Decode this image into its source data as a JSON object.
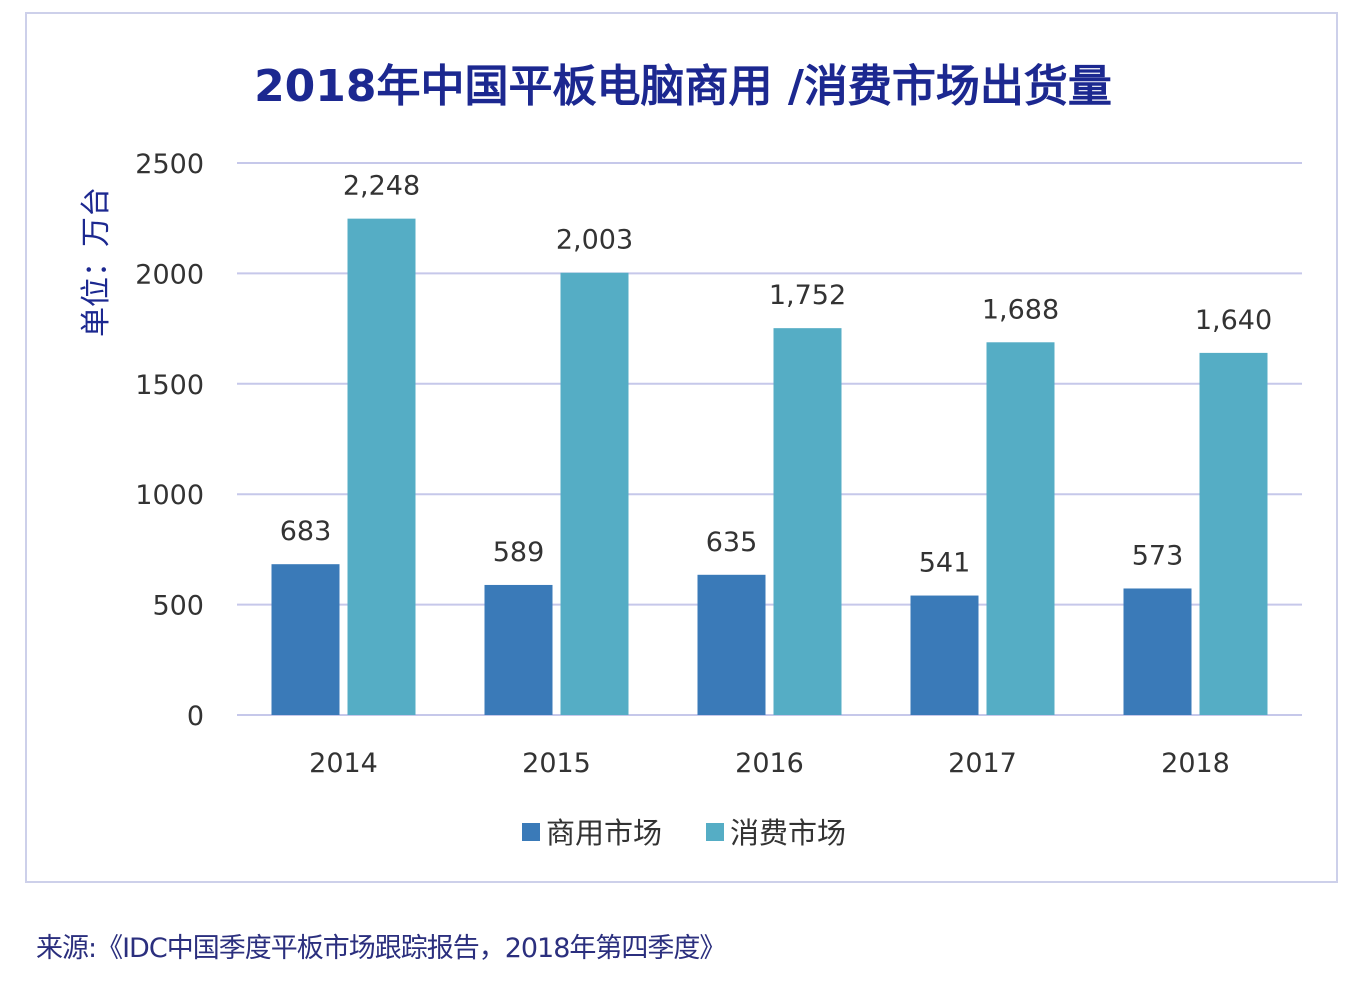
{
  "chart_data": {
    "type": "bar",
    "title": "2018年中国平板电脑商用 /消费市场出货量",
    "ylabel": "单位：万台",
    "xlabel": "",
    "categories": [
      "2014",
      "2015",
      "2016",
      "2017",
      "2018"
    ],
    "series": [
      {
        "name": "商用市场",
        "color": "#3a7ab8",
        "values": [
          683,
          589,
          635,
          541,
          573
        ],
        "labels": [
          "683",
          "589",
          "635",
          "541",
          "573"
        ]
      },
      {
        "name": "消费市场",
        "color": "#55adc5",
        "values": [
          2248,
          2003,
          1752,
          1688,
          1640
        ],
        "labels": [
          "2,248",
          "2,003",
          "1,752",
          "1,688",
          "1,640"
        ]
      }
    ],
    "ylim": [
      0,
      2500
    ],
    "yticks": [
      0,
      500,
      1000,
      1500,
      2000,
      2500
    ],
    "grid": true,
    "legend": "bottom-center"
  },
  "source": "来源:《IDC中国季度平板市场跟踪报告，2018年第四季度》",
  "colors": {
    "title": "#1c2890",
    "grid": "#c6c8ea",
    "text": "#333333"
  }
}
